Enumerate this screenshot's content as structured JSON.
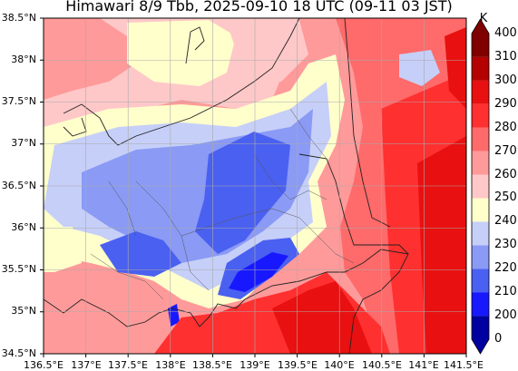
{
  "title": "Himawari 8/9 Tbb, 2025-09-10 18 UTC (09-11 03 JST)",
  "lat_labels": [
    "38.5°N",
    "38°N",
    "37.5°N",
    "37°N",
    "36.5°N",
    "36°N",
    "35.5°N",
    "35°N",
    "34.5°N"
  ],
  "lon_labels": [
    "136.5°E",
    "137°E",
    "137.5°E",
    "138°E",
    "138.5°E",
    "139°E",
    "139.5°E",
    "140°E",
    "140.5°E",
    "141°E",
    "141.5°E"
  ],
  "colorbar": {
    "unit": "K",
    "tick_labels": [
      "400",
      "310",
      "300",
      "290",
      "280",
      "270",
      "260",
      "250",
      "240",
      "230",
      "220",
      "210",
      "200",
      "0"
    ],
    "colors": [
      "#0000a0",
      "#1818ff",
      "#4a60f0",
      "#8a9af5",
      "#c6cff8",
      "#ffffcc",
      "#ffc8c8",
      "#ff9a9a",
      "#ff6a6a",
      "#ff3030",
      "#e81010",
      "#b40000",
      "#800000"
    ]
  }
}
